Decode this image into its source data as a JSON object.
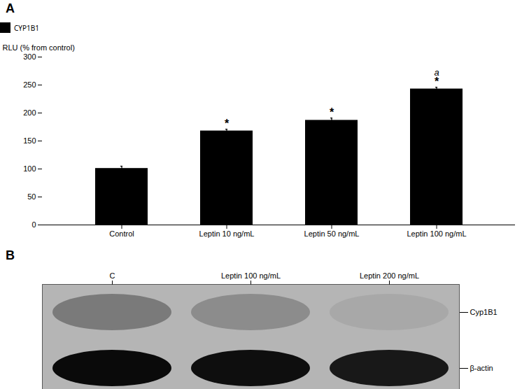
{
  "chart_data": [
    {
      "type": "bar",
      "title": "A",
      "categories": [
        "Control",
        "Leptin 10 ng/mL",
        "Leptin 50 ng/mL",
        "Leptin 100 ng/mL"
      ],
      "series": [
        {
          "name": "CYP1B1",
          "color": "#000000",
          "values": [
            101,
            168,
            187,
            243
          ],
          "errors": [
            4,
            3,
            4,
            3
          ]
        }
      ],
      "ylabel": "RLU (% from control)",
      "ylim": [
        0,
        300
      ],
      "yticks": [
        0,
        50,
        100,
        150,
        200,
        250,
        300
      ],
      "legend": "top",
      "annotations": [
        {
          "text": "*",
          "category": "Leptin 10 ng/mL"
        },
        {
          "text": "*",
          "category": "Leptin 50 ng/mL"
        },
        {
          "text": "*",
          "category": "Leptin 100 ng/mL"
        },
        {
          "text": "a",
          "category": "Leptin 100 ng/mL"
        }
      ]
    },
    {
      "type": "blot",
      "title": "B",
      "categories": [
        "C",
        "Leptin 100 ng/mL",
        "Leptin 200 ng/mL"
      ],
      "color": "#b5b5b5",
      "series": [
        {
          "name": "Cyp1B1",
          "colors": [
            "#7a7a7a",
            "#8c8c8c",
            "#a8a8a8"
          ]
        },
        {
          "name": "β-actin",
          "colors": [
            "#0a0a0a",
            "#0e0e0e",
            "#181818"
          ]
        }
      ]
    }
  ]
}
